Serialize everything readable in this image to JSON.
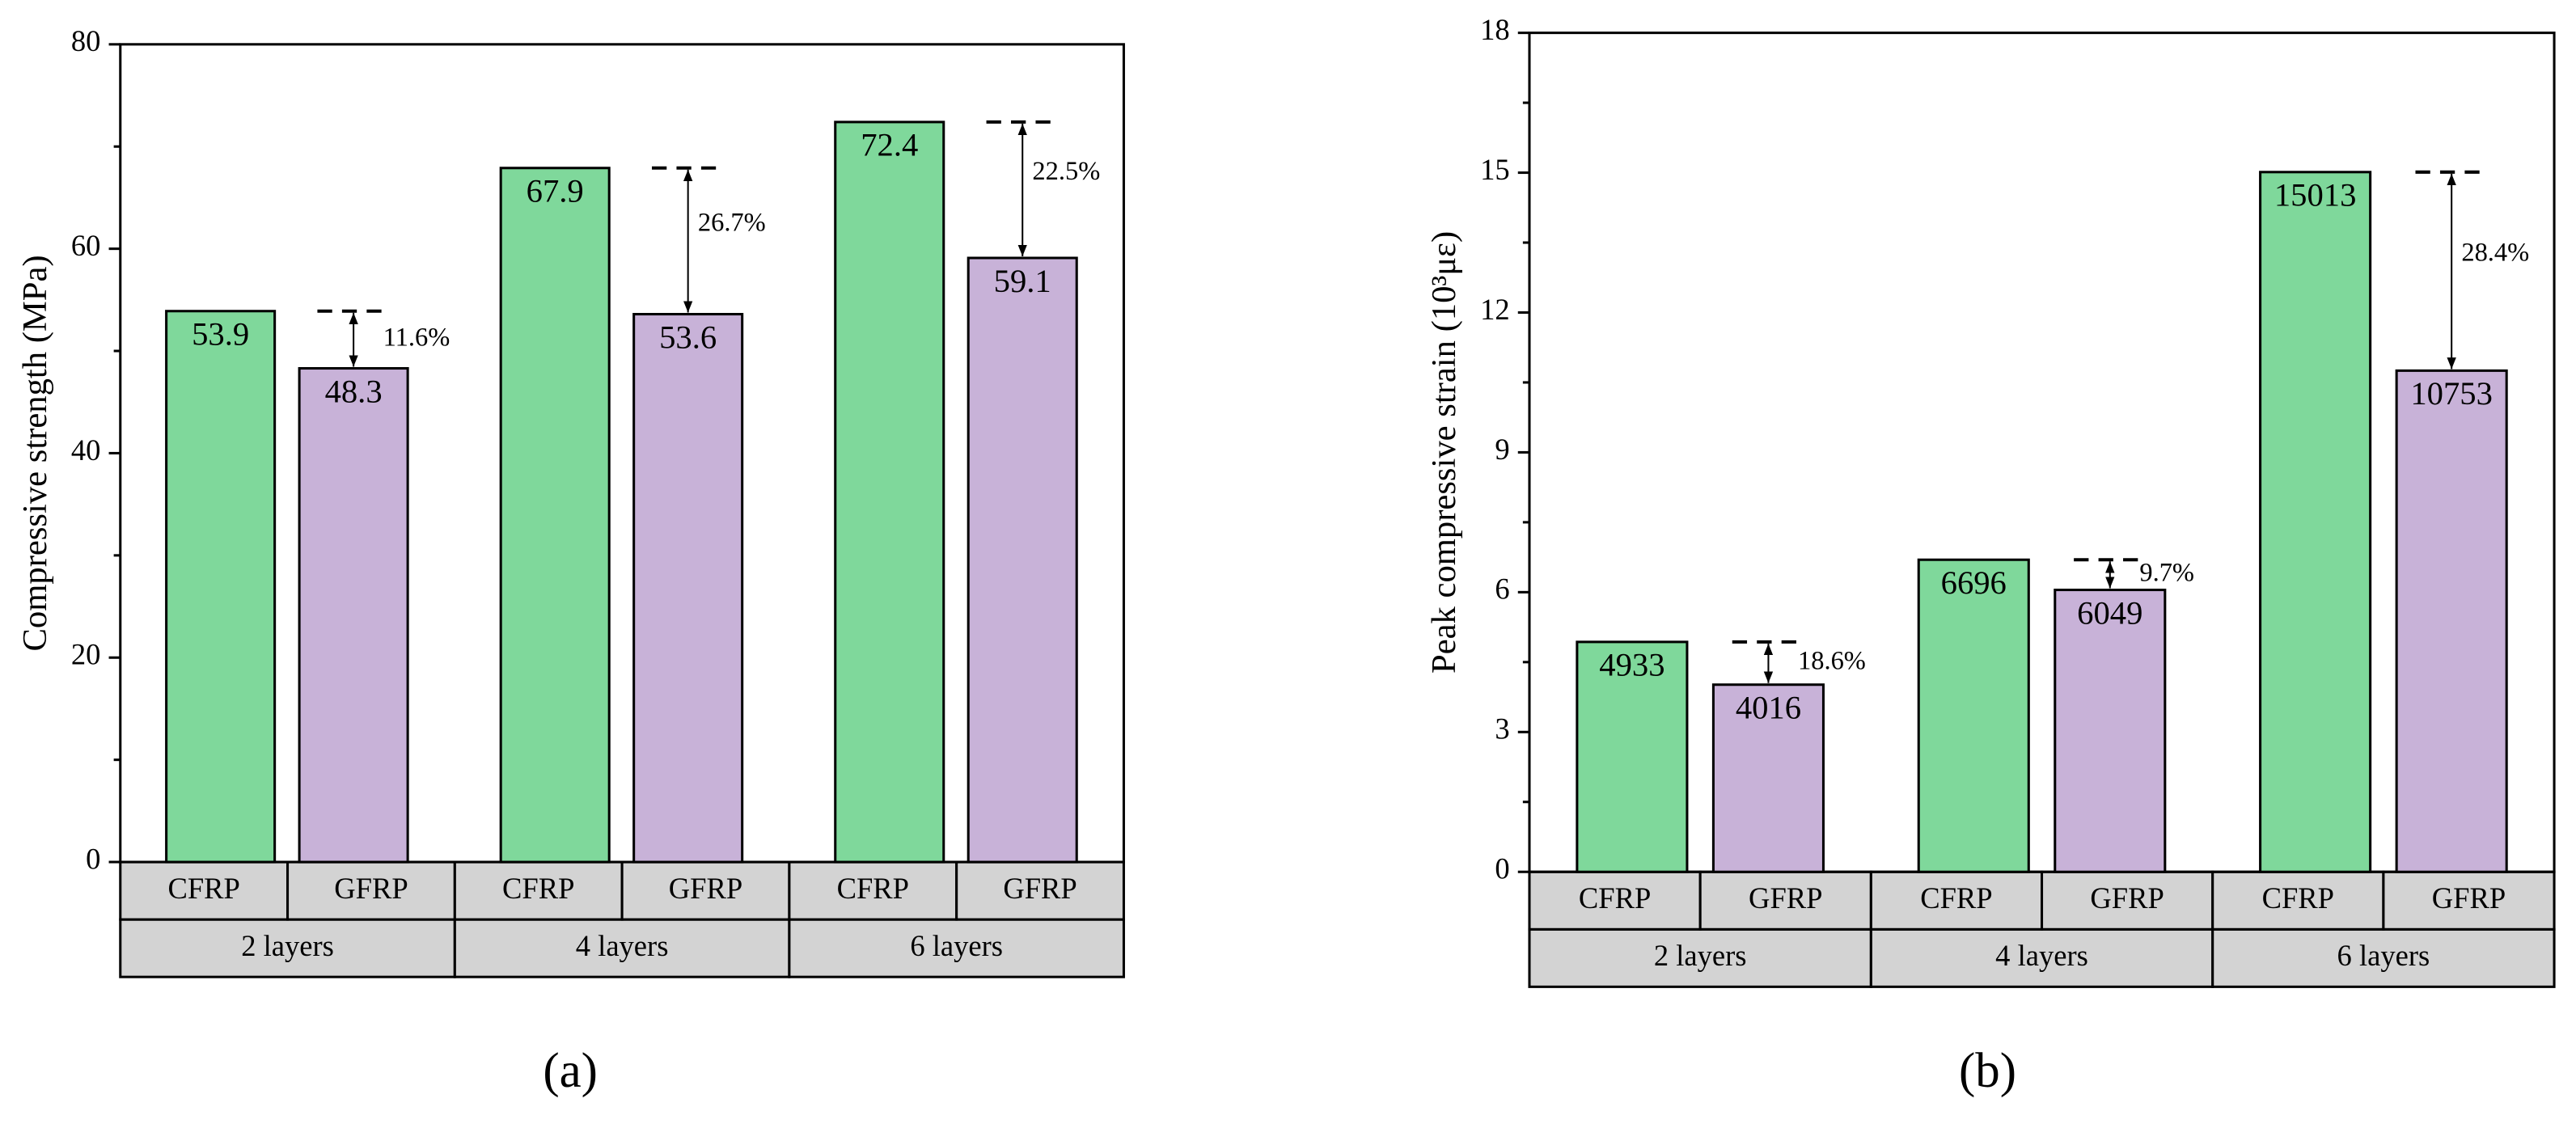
{
  "chart_data": [
    {
      "type": "bar",
      "panel": "(a)",
      "ylabel": "Compressive strength (MPa)",
      "groups": [
        "2 layers",
        "4 layers",
        "6 layers"
      ],
      "series": [
        {
          "name": "CFRP",
          "color": "#7fd89b",
          "values": [
            53.9,
            67.9,
            72.4
          ]
        },
        {
          "name": "GFRP",
          "color": "#c8b2d8",
          "values": [
            48.3,
            53.6,
            59.1
          ]
        }
      ],
      "annotations": [
        "11.6%",
        "26.7%",
        "22.5%"
      ],
      "ylim": [
        0,
        80
      ],
      "yticks": [
        0,
        20,
        40,
        60,
        80
      ],
      "minor_yticks": [
        10,
        30,
        50,
        70
      ]
    },
    {
      "type": "bar",
      "panel": "(b)",
      "ylabel": "Peak compressive strain (10³με)",
      "groups": [
        "2 layers",
        "4 layers",
        "6 layers"
      ],
      "series": [
        {
          "name": "CFRP",
          "color": "#7fd89b",
          "values": [
            4.933,
            6.696,
            15.013
          ],
          "value_labels": [
            "4933",
            "6696",
            "15013"
          ]
        },
        {
          "name": "GFRP",
          "color": "#c8b2d8",
          "values": [
            4.016,
            6.049,
            10.753
          ],
          "value_labels": [
            "4016",
            "6049",
            "10753"
          ]
        }
      ],
      "annotations": [
        "18.6%",
        "9.7%",
        "28.4%"
      ],
      "ylim": [
        0,
        18
      ],
      "yticks": [
        0,
        3,
        6,
        9,
        12,
        15,
        18
      ],
      "minor_yticks": [
        1.5,
        4.5,
        7.5,
        10.5,
        13.5,
        16.5
      ]
    }
  ]
}
